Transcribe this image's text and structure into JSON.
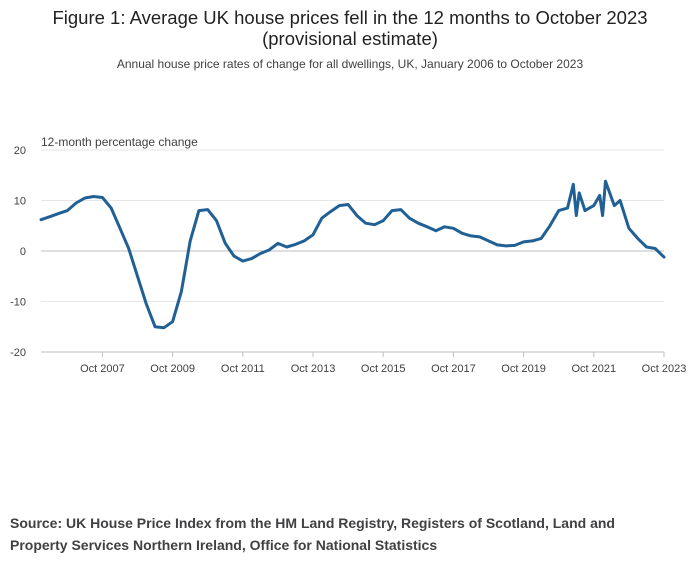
{
  "figure": {
    "title_line1": "Figure 1: Average UK house prices fell in the 12 months to October 2023",
    "title_line2": "(provisional estimate)",
    "subtitle": "Annual house price rates of change for all dwellings, UK, January 2006 to October 2023",
    "source": "Source: UK House Price Index from the HM Land Registry, Registers of Scotland, Land and Property Services Northern Ireland, Office for National Statistics"
  },
  "chart_data": {
    "type": "line",
    "title": "Figure 1: Average UK house prices fell in the 12 months to October 2023 (provisional estimate)",
    "subtitle": "Annual house price rates of change for all dwellings, UK, January 2006 to October 2023",
    "ylabel": "12-month percentage change",
    "xlabel": "",
    "ylim": [
      -20,
      20
    ],
    "yticks": [
      20,
      10,
      0,
      -10,
      -20
    ],
    "xticks": [
      "Oct 2007",
      "Oct 2009",
      "Oct 2011",
      "Oct 2013",
      "Oct 2015",
      "Oct 2017",
      "Oct 2019",
      "Oct 2021",
      "Oct 2023"
    ],
    "line_color": "#206095",
    "grid": true,
    "series": [
      {
        "name": "12-month percentage change",
        "points": [
          [
            "2006-01",
            6.2
          ],
          [
            "2006-04",
            6.8
          ],
          [
            "2006-07",
            7.4
          ],
          [
            "2006-10",
            8.0
          ],
          [
            "2007-01",
            9.5
          ],
          [
            "2007-04",
            10.5
          ],
          [
            "2007-07",
            10.8
          ],
          [
            "2007-10",
            10.6
          ],
          [
            "2008-01",
            8.5
          ],
          [
            "2008-04",
            4.5
          ],
          [
            "2008-07",
            0.5
          ],
          [
            "2008-10",
            -5.0
          ],
          [
            "2009-01",
            -10.5
          ],
          [
            "2009-04",
            -15.0
          ],
          [
            "2009-07",
            -15.2
          ],
          [
            "2009-10",
            -14.0
          ],
          [
            "2010-01",
            -8.0
          ],
          [
            "2010-04",
            2.0
          ],
          [
            "2010-07",
            8.0
          ],
          [
            "2010-10",
            8.2
          ],
          [
            "2011-01",
            6.0
          ],
          [
            "2011-04",
            1.5
          ],
          [
            "2011-07",
            -1.0
          ],
          [
            "2011-10",
            -2.0
          ],
          [
            "2012-01",
            -1.5
          ],
          [
            "2012-04",
            -0.5
          ],
          [
            "2012-07",
            0.2
          ],
          [
            "2012-10",
            1.5
          ],
          [
            "2013-01",
            0.8
          ],
          [
            "2013-04",
            1.3
          ],
          [
            "2013-07",
            2.0
          ],
          [
            "2013-10",
            3.2
          ],
          [
            "2014-01",
            6.5
          ],
          [
            "2014-04",
            7.8
          ],
          [
            "2014-07",
            9.0
          ],
          [
            "2014-10",
            9.2
          ],
          [
            "2015-01",
            7.0
          ],
          [
            "2015-04",
            5.5
          ],
          [
            "2015-07",
            5.2
          ],
          [
            "2015-10",
            6.0
          ],
          [
            "2016-01",
            8.0
          ],
          [
            "2016-04",
            8.2
          ],
          [
            "2016-07",
            6.5
          ],
          [
            "2016-10",
            5.5
          ],
          [
            "2017-01",
            4.8
          ],
          [
            "2017-04",
            4.0
          ],
          [
            "2017-07",
            4.8
          ],
          [
            "2017-10",
            4.5
          ],
          [
            "2018-01",
            3.5
          ],
          [
            "2018-04",
            3.0
          ],
          [
            "2018-07",
            2.8
          ],
          [
            "2018-10",
            2.0
          ],
          [
            "2019-01",
            1.2
          ],
          [
            "2019-04",
            1.0
          ],
          [
            "2019-07",
            1.1
          ],
          [
            "2019-10",
            1.8
          ],
          [
            "2020-01",
            2.0
          ],
          [
            "2020-04",
            2.5
          ],
          [
            "2020-07",
            5.0
          ],
          [
            "2020-10",
            8.0
          ],
          [
            "2021-01",
            8.5
          ],
          [
            "2021-03",
            13.2
          ],
          [
            "2021-04",
            7.0
          ],
          [
            "2021-05",
            11.5
          ],
          [
            "2021-07",
            8.0
          ],
          [
            "2021-10",
            9.0
          ],
          [
            "2021-12",
            11.0
          ],
          [
            "2022-01",
            7.0
          ],
          [
            "2022-02",
            13.8
          ],
          [
            "2022-05",
            9.0
          ],
          [
            "2022-07",
            10.0
          ],
          [
            "2022-10",
            4.5
          ],
          [
            "2023-01",
            2.5
          ],
          [
            "2023-04",
            0.8
          ],
          [
            "2023-07",
            0.5
          ],
          [
            "2023-10",
            -1.2
          ]
        ]
      }
    ]
  }
}
